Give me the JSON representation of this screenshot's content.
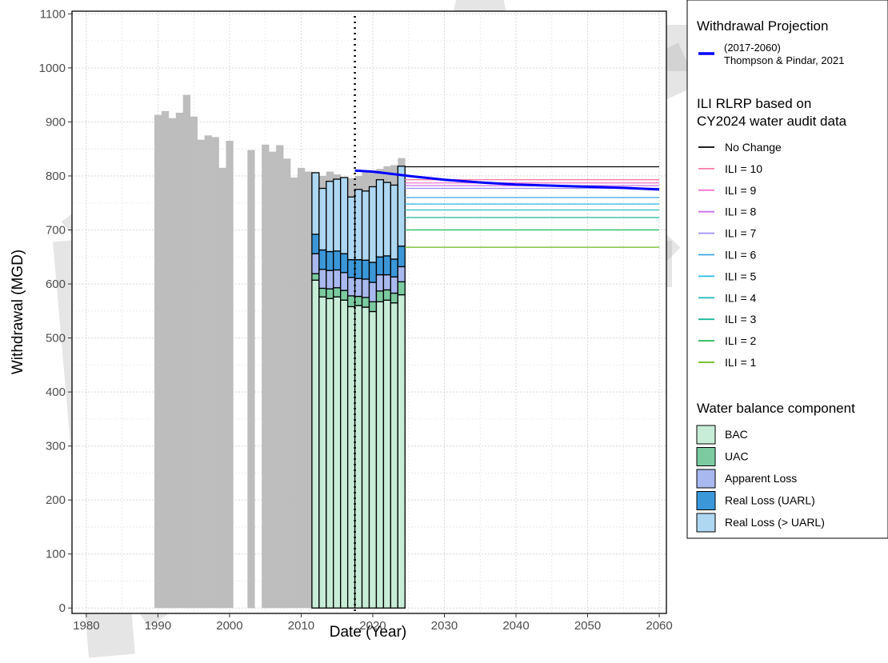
{
  "chart_data": {
    "type": "bar",
    "xlabel": "Date (Year)",
    "ylabel": "Withdrawal (MGD)",
    "xlim": [
      1978,
      2061
    ],
    "ylim": [
      -10,
      1105
    ],
    "x_ticks": [
      1980,
      1990,
      2000,
      2010,
      2020,
      2030,
      2040,
      2050,
      2060
    ],
    "y_ticks": [
      0,
      100,
      200,
      300,
      400,
      500,
      600,
      700,
      800,
      900,
      1000,
      1100
    ],
    "grid": true,
    "legend_position": "right",
    "historical_withdrawal": {
      "color": "#bdbdbd",
      "x": [
        1990,
        1991,
        1992,
        1993,
        1994,
        1995,
        1996,
        1997,
        1998,
        1999,
        2000,
        2003,
        2005,
        2006,
        2007,
        2008,
        2009,
        2010,
        2011,
        2012,
        2013,
        2014,
        2015,
        2016,
        2017,
        2018,
        2019,
        2020,
        2021,
        2022,
        2023,
        2024
      ],
      "values": [
        913,
        920,
        907,
        917,
        950,
        910,
        867,
        875,
        872,
        815,
        865,
        848,
        858,
        845,
        857,
        832,
        797,
        815,
        808,
        795,
        800,
        808,
        803,
        797,
        796,
        800,
        808,
        810,
        813,
        818,
        820,
        833
      ]
    },
    "water_balance": {
      "years": [
        2012,
        2013,
        2014,
        2015,
        2016,
        2017,
        2018,
        2019,
        2020,
        2021,
        2022,
        2023,
        2024
      ],
      "series": [
        {
          "name": "BAC",
          "color": "#c7ecd8",
          "values": [
            607,
            576,
            573,
            576,
            570,
            558,
            560,
            557,
            549,
            567,
            570,
            565,
            580
          ]
        },
        {
          "name": "UAC",
          "color": "#7ccaa0",
          "values": [
            12,
            16,
            18,
            17,
            18,
            20,
            17,
            18,
            18,
            20,
            19,
            18,
            24
          ]
        },
        {
          "name": "Apparent Loss",
          "color": "#a9b9ef",
          "values": [
            37,
            35,
            34,
            33,
            33,
            34,
            33,
            34,
            36,
            30,
            28,
            30,
            28
          ]
        },
        {
          "name": "Real Loss (UARL)",
          "color": "#3b97d8",
          "values": [
            36,
            36,
            35,
            35,
            35,
            33,
            35,
            35,
            37,
            33,
            35,
            33,
            38
          ]
        },
        {
          "name": "Real Loss (> UARL)",
          "color": "#aed7f2",
          "values": [
            114,
            114,
            130,
            133,
            141,
            116,
            130,
            128,
            140,
            143,
            136,
            137,
            148
          ]
        }
      ]
    },
    "withdrawal_projection": {
      "name": "(2017-2060)\nThompson & Pindar, 2021",
      "color": "#0000ff",
      "x": [
        2017.5,
        2020,
        2025,
        2030,
        2035,
        2040,
        2045,
        2050,
        2055,
        2060
      ],
      "values": [
        810,
        808,
        800,
        793,
        788,
        784,
        782,
        780,
        778,
        775
      ]
    },
    "ili_rlrp": {
      "x_start": 2024.5,
      "x_end": 2060,
      "lines": [
        {
          "name": "No Change",
          "color": "#000000",
          "value": 817
        },
        {
          "name": "ILI = 10",
          "color": "#f77ea4",
          "value": 793
        },
        {
          "name": "ILI = 9",
          "color": "#f074d0",
          "value": 787
        },
        {
          "name": "ILI = 8",
          "color": "#d070ee",
          "value": 782
        },
        {
          "name": "ILI = 7",
          "color": "#9d8ff2",
          "value": 777
        },
        {
          "name": "ILI = 6",
          "color": "#3aa6e2",
          "value": 760
        },
        {
          "name": "ILI = 5",
          "color": "#2bbce8",
          "value": 748
        },
        {
          "name": "ILI = 4",
          "color": "#2bbdbd",
          "value": 737
        },
        {
          "name": "ILI = 3",
          "color": "#1ab89a",
          "value": 723
        },
        {
          "name": "ILI = 2",
          "color": "#1fb854",
          "value": 700
        },
        {
          "name": "ILI = 1",
          "color": "#6bb71c",
          "value": 668
        }
      ]
    },
    "reference_line": {
      "x": 2017.5,
      "style": "dotted",
      "color": "#000000"
    },
    "legend": {
      "projection_title": "Withdrawal Projection",
      "projection_label_1": "(2017-2060)",
      "projection_label_2": "Thompson & Pindar, 2021",
      "ili_title_1": "ILI RLRP based on",
      "ili_title_2": "CY2024 water audit data",
      "balance_title": "Water balance component"
    },
    "watermark": {
      "text": "DRAFT",
      "color": "#b0b0b0"
    }
  }
}
